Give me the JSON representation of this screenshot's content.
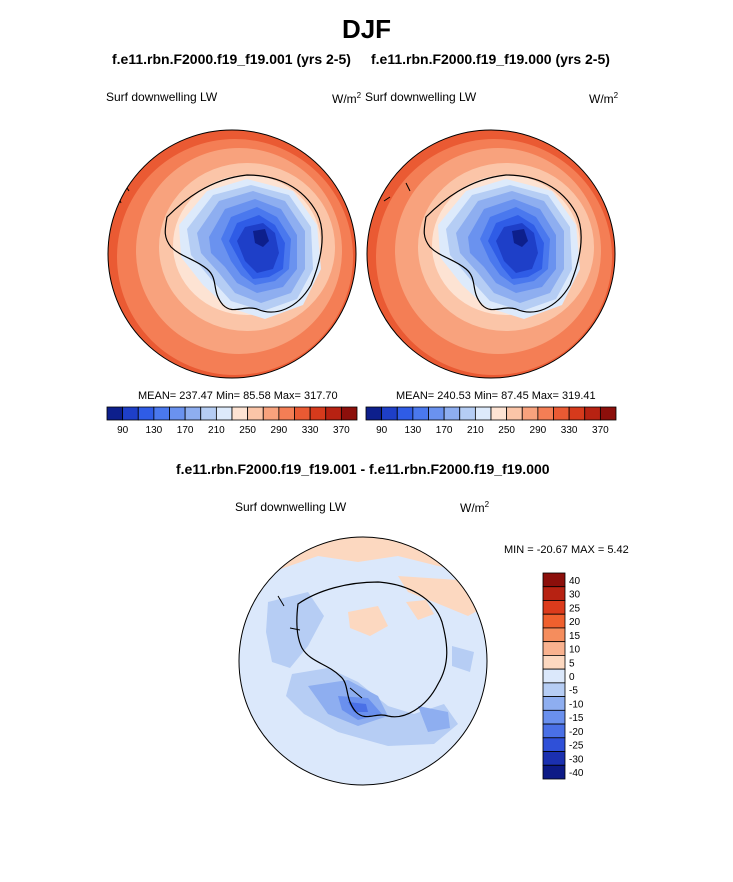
{
  "title": "DJF",
  "panels": [
    {
      "title": "f.e11.rbn.F2000.f19_f19.001 (yrs 2-5)",
      "variable": "Surf downwelling LW",
      "units_base": "W/m",
      "units_exp": "2",
      "stats": {
        "mean": "237.47",
        "min": "85.58",
        "max": "317.70"
      },
      "stats_text": "MEAN= 237.47  Min=  85.58  Max= 317.70"
    },
    {
      "title": "f.e11.rbn.F2000.f19_f19.000 (yrs 2-5)",
      "variable": "Surf downwelling LW",
      "units_base": "W/m",
      "units_exp": "2",
      "stats": {
        "mean": "240.53",
        "min": "87.45",
        "max": "319.41"
      },
      "stats_text": "MEAN= 240.53  Min=  87.45  Max= 319.41"
    }
  ],
  "field_colorbar": {
    "colors": [
      "#0d1f8c",
      "#1e3fc8",
      "#2f5ce6",
      "#4a78ee",
      "#6a92ef",
      "#8eaef0",
      "#b5cdf4",
      "#ddeafb",
      "#fde3d3",
      "#fbc5a8",
      "#f8a27d",
      "#f47e55",
      "#ea5a33",
      "#d63a1c",
      "#b72212",
      "#8c0f0b"
    ],
    "ticks": [
      "90",
      "130",
      "170",
      "210",
      "250",
      "290",
      "330",
      "370"
    ]
  },
  "diff_panel": {
    "title": "f.e11.rbn.F2000.f19_f19.001 - f.e11.rbn.F2000.f19_f19.000",
    "variable": "Surf downwelling LW",
    "units_base": "W/m",
    "units_exp": "2",
    "minmax_text": "MIN = -20.67 MAX =   5.42"
  },
  "diff_colorbar": {
    "colors": [
      "#8c0f0b",
      "#b72212",
      "#dc3b1c",
      "#f0602e",
      "#f58d5d",
      "#f9b28f",
      "#fcd8c0",
      "#dbe8fb",
      "#b6cdf4",
      "#8eaef0",
      "#6a90ee",
      "#4a70e6",
      "#2f50d8",
      "#1b30b0",
      "#0d1a86"
    ],
    "labels": [
      "40",
      "30",
      "25",
      "20",
      "15",
      "10",
      "5",
      "0",
      "-5",
      "-10",
      "-15",
      "-20",
      "-25",
      "-30",
      "-40"
    ]
  }
}
